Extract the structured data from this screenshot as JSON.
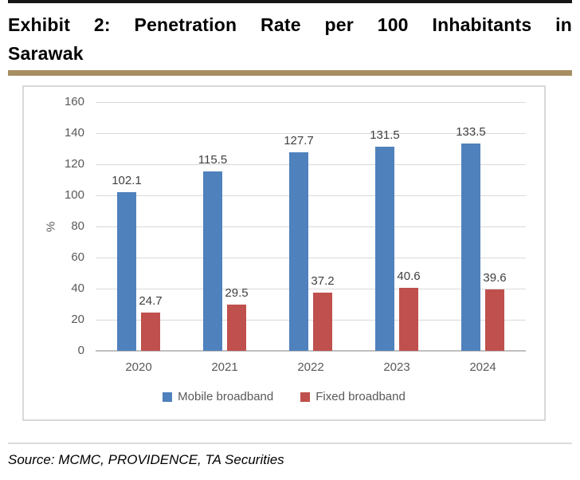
{
  "page": {
    "title_line1": "Exhibit 2: Penetration Rate per 100 Inhabitants in",
    "title_line2": "Sarawak",
    "source": "Source: MCMC, PROVIDENCE, TA Securities"
  },
  "colors": {
    "mobile": "#4F81BD",
    "fixed": "#C0504D",
    "gold_divider": "#A78F63",
    "grid": "#D9D9D9",
    "axis": "#BFBFBF",
    "tick_text": "#595959",
    "value_text": "#404040"
  },
  "chart_data": {
    "type": "bar",
    "title": "",
    "categories": [
      "2020",
      "2021",
      "2022",
      "2023",
      "2024"
    ],
    "series": [
      {
        "name": "Mobile broadband",
        "color_key": "mobile",
        "values": [
          102.1,
          115.5,
          127.7,
          131.5,
          133.5
        ]
      },
      {
        "name": "Fixed broadband",
        "color_key": "fixed",
        "values": [
          24.7,
          29.5,
          37.2,
          40.6,
          39.6
        ]
      }
    ],
    "xlabel": "",
    "ylabel": "%",
    "ylim": [
      0,
      160
    ],
    "ytick_step": 20,
    "grid": "horizontal",
    "legend_position": "bottom"
  }
}
